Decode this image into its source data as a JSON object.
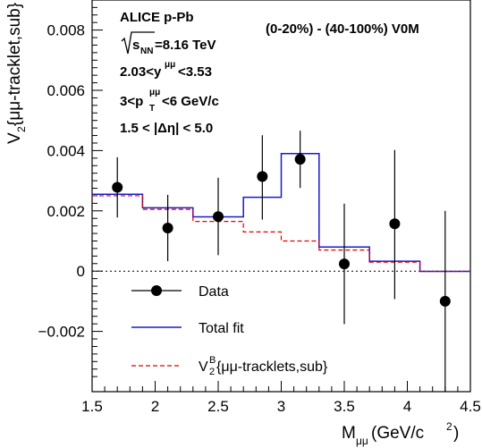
{
  "chart_data": {
    "type": "scatter",
    "xlabel_main": "M",
    "xlabel_sub": "μμ",
    "xlabel_unit": " (GeV/c",
    "xlabel_sup": "2",
    "xlabel_close": ")",
    "ylabel_main": "V",
    "ylabel_sub": "2",
    "ylabel_rest": "{μμ-tracklet,sub}",
    "xlim": [
      1.5,
      4.5
    ],
    "ylim": [
      -0.004,
      0.009
    ],
    "x_ticks": [
      1.5,
      2,
      2.5,
      3,
      3.5,
      4,
      4.5
    ],
    "x_tick_labels": [
      "1.5",
      "2",
      "2.5",
      "3",
      "3.5",
      "4",
      "4.5"
    ],
    "y_ticks": [
      -0.002,
      0,
      0.002,
      0.004,
      0.006,
      0.008
    ],
    "y_tick_labels": [
      "−0.002",
      "0",
      "0.002",
      "0.004",
      "0.006",
      "0.008"
    ],
    "zero_line": true,
    "series": [
      {
        "name": "Data",
        "style": "markers-errorbars",
        "color": "#000000",
        "points": [
          {
            "x": 1.7,
            "y": 0.00278,
            "ylo": 0.00178,
            "yhi": 0.00378
          },
          {
            "x": 2.1,
            "y": 0.00143,
            "ylo": 0.00033,
            "yhi": 0.00253
          },
          {
            "x": 2.5,
            "y": 0.00181,
            "ylo": 0.00053,
            "yhi": 0.0031
          },
          {
            "x": 2.85,
            "y": 0.00314,
            "ylo": 0.00171,
            "yhi": 0.00451
          },
          {
            "x": 3.15,
            "y": 0.00371,
            "ylo": 0.00276,
            "yhi": 0.00466
          },
          {
            "x": 3.5,
            "y": 0.00024,
            "ylo": -0.00176,
            "yhi": 0.00224
          },
          {
            "x": 3.9,
            "y": 0.00157,
            "ylo": -0.00093,
            "yhi": 0.00402
          },
          {
            "x": 4.3,
            "y": -0.001,
            "ylo": -0.004,
            "yhi": 0.002
          }
        ]
      },
      {
        "name": "Total fit",
        "style": "step",
        "color": "#1a1acc",
        "edges": [
          1.5,
          1.9,
          2.3,
          2.7,
          3.0,
          3.3,
          3.7,
          4.1,
          4.5
        ],
        "values": [
          0.00255,
          0.0021,
          0.0018,
          0.00245,
          0.0039,
          0.0008,
          0.00033,
          -1e-05
        ]
      },
      {
        "name_main": "V",
        "name_sup": "B",
        "name_sub": "2",
        "name_rest": "{μμ-tracklets,sub}",
        "style": "step-dashed",
        "color": "#e00000",
        "edges": [
          1.5,
          1.9,
          2.3,
          2.7,
          3.0,
          3.3,
          3.7,
          4.1,
          4.5
        ],
        "values": [
          0.0025,
          0.00205,
          0.00165,
          0.0013,
          0.001,
          0.0007,
          0.0003,
          -1e-05
        ]
      }
    ],
    "annotations": {
      "experiment": "ALICE p-Pb",
      "energy_sqrt": "s",
      "energy_sub": "NN",
      "energy_rest": "=8.16 TeV",
      "rap_pre": "2.03<y",
      "rap_sup": "μμ",
      "rap_post": "<3.53",
      "pt_pre": "3<p",
      "pt_sup": "μμ",
      "pt_sub": "T",
      "pt_post": "<6 GeV/c",
      "eta": "1.5 < |Δη| < 5.0",
      "centrality": "(0-20%) - (40-100%) V0M"
    },
    "legend": {
      "data_label": "Data",
      "fit_label": "Total fit",
      "placement": "bottom-left"
    }
  }
}
